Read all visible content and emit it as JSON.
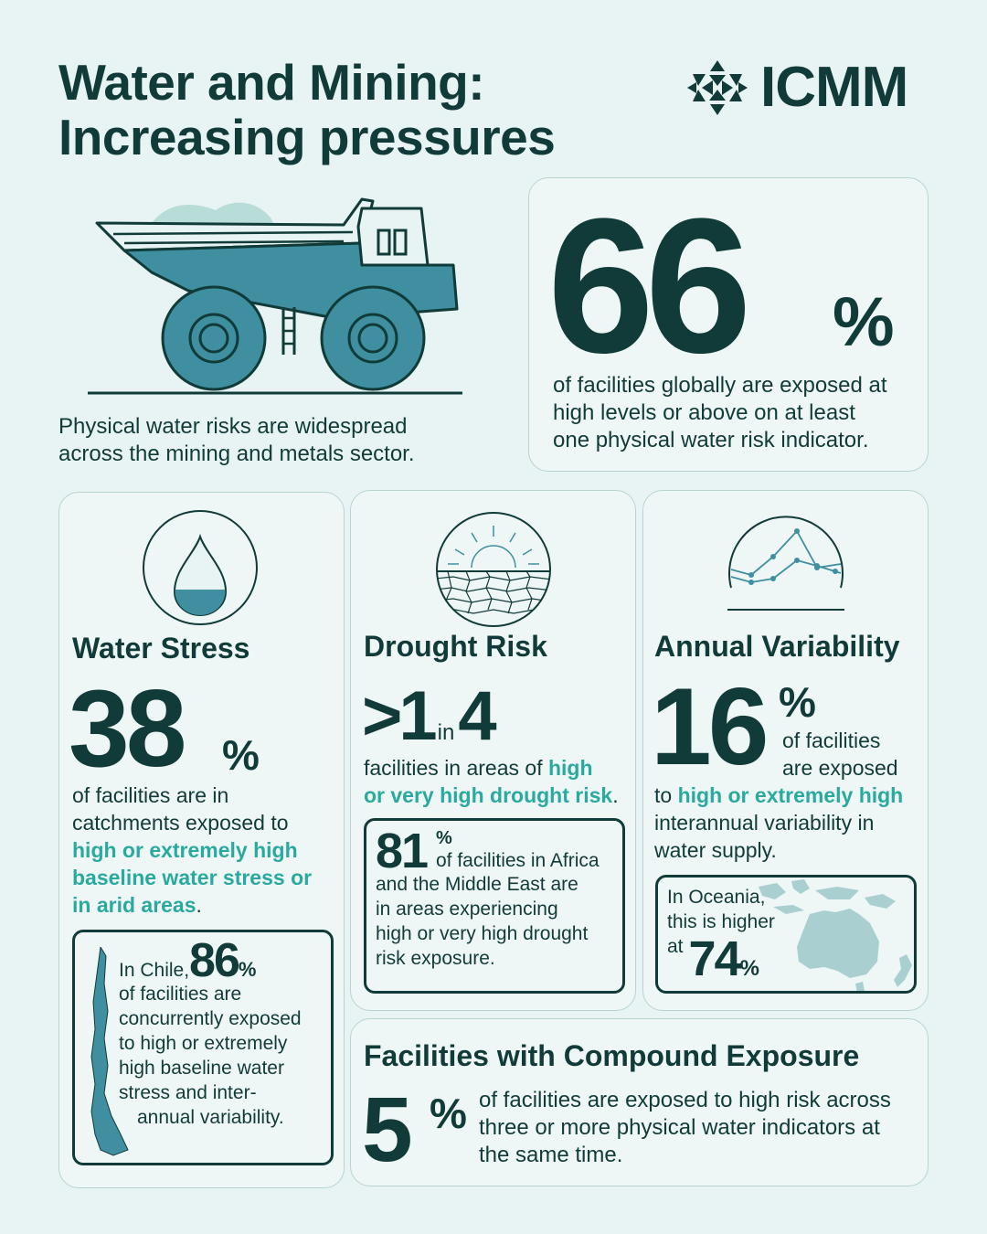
{
  "header": {
    "title_line1": "Water and Mining:",
    "title_line2": "Increasing pressures",
    "logo_text": "ICMM",
    "logo_icon": "icmm-snowflake-icon"
  },
  "intro": {
    "line1": "Physical water risks are widespread",
    "line2": "across the mining and metals sector."
  },
  "headline_stat": {
    "value": "66",
    "percent": "%",
    "line1": "of facilities globally are exposed at",
    "line2": "high levels or above on at least",
    "line3": "one physical water risk indicator."
  },
  "water_stress": {
    "icon": "water-drop-icon",
    "title": "Water Stress",
    "value": "38",
    "percent": "%",
    "line1": "of facilities are in",
    "line2": "catchments exposed to",
    "hl1": "high or extremely high",
    "hl2": "baseline water stress or",
    "hl3": "in arid areas",
    "hl3_end": ".",
    "chile": {
      "icon": "chile-map-icon",
      "prefix": "In Chile,",
      "value": "86",
      "percent": "%",
      "line1": "of facilities are",
      "line2": "concurrently exposed",
      "line3": "to high or extremely",
      "line4": "high baseline water",
      "line5": "stress and inter-",
      "line6": "annual variability."
    }
  },
  "drought": {
    "icon": "sun-cracked-earth-icon",
    "title": "Drought Risk",
    "value_a": ">1",
    "in_word": "in",
    "value_b": "4",
    "line1": "facilities in areas of",
    "hl1": "high",
    "hl2": "or very high drought risk",
    "hl2_end": ".",
    "africa": {
      "value": "81",
      "percent": "%",
      "line1": "of facilities in Africa",
      "line2": "and the Middle East are",
      "line3": "in areas experiencing",
      "line4": "high or very high drought",
      "line5": "risk exposure."
    }
  },
  "variability": {
    "icon": "line-chart-icon",
    "title": "Annual Variability",
    "value": "16",
    "percent": "%",
    "side1": "of facilities",
    "side2": "are exposed",
    "to_word": "to",
    "hl1": "high or extremely high",
    "line1": "interannual variability in",
    "line2": "water supply.",
    "oceania": {
      "icon": "oceania-map-icon",
      "line1": "In Oceania,",
      "line2": "this is higher",
      "at_word": "at",
      "value": "74",
      "percent": "%"
    }
  },
  "compound": {
    "title": "Facilities with Compound Exposure",
    "value": "5",
    "percent": "%",
    "line1": "of facilities are exposed to high risk across",
    "line2": "three or more physical water indicators at",
    "line3": "the same time."
  },
  "colors": {
    "background": "#e8f4f3",
    "dark_teal": "#113b38",
    "accent_teal": "#2aa99e",
    "truck_teal": "#3f8fa0"
  }
}
